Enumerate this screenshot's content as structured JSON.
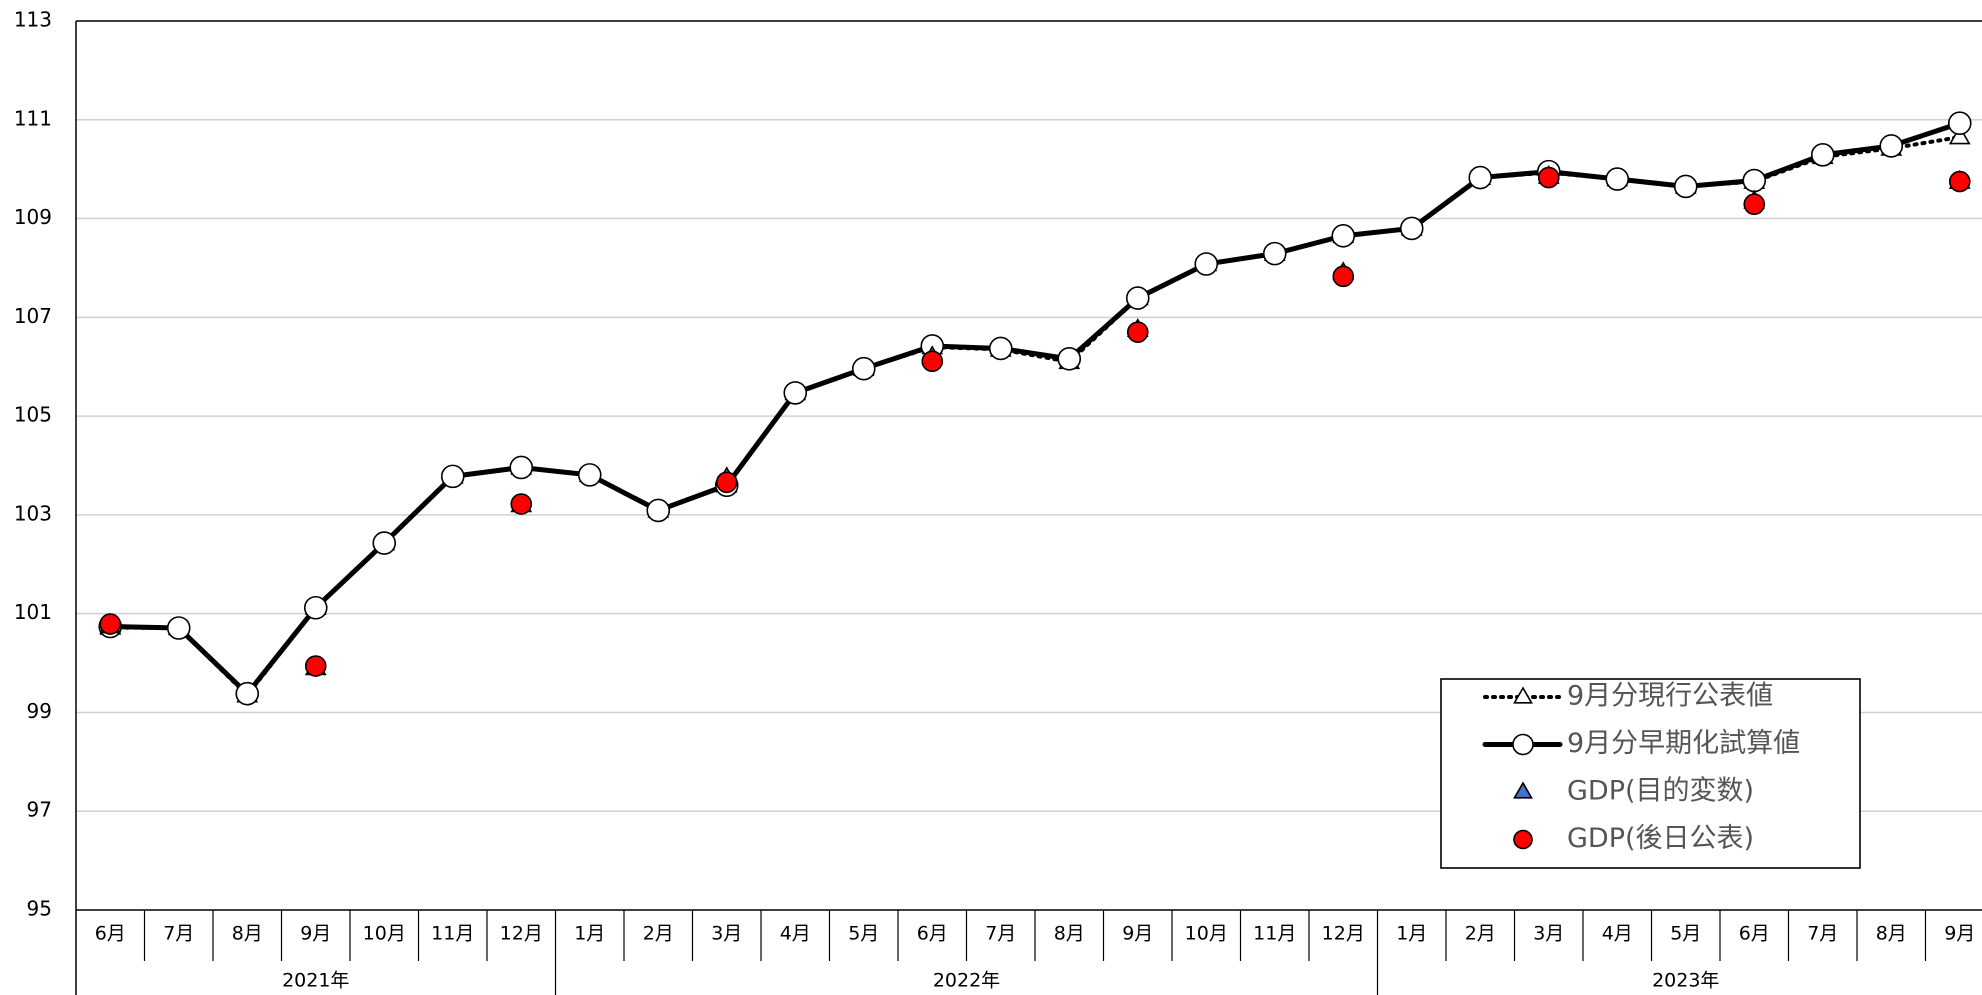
{
  "chart_data": {
    "type": "line",
    "categories": [
      "6月",
      "7月",
      "8月",
      "9月",
      "10月",
      "11月",
      "12月",
      "1月",
      "2月",
      "3月",
      "4月",
      "5月",
      "6月",
      "7月",
      "8月",
      "9月",
      "10月",
      "11月",
      "12月",
      "1月",
      "2月",
      "3月",
      "4月",
      "5月",
      "6月",
      "7月",
      "8月",
      "9月"
    ],
    "years": [
      "2021年",
      "2022年",
      "2023年"
    ],
    "series": [
      {
        "name": "9月分現行公表値",
        "color": "#ffffff",
        "marker": "triangle",
        "line": "dotted",
        "values": [
          100.72,
          100.71,
          99.35,
          101.12,
          102.43,
          103.78,
          103.96,
          103.81,
          103.09,
          103.6,
          105.47,
          105.96,
          106.4,
          106.35,
          106.1,
          107.39,
          108.08,
          108.29,
          108.65,
          108.8,
          109.83,
          109.93,
          109.8,
          109.65,
          109.75,
          110.25,
          110.42,
          110.65
        ]
      },
      {
        "name": "9月分早期化試算値",
        "color": "#ffffff",
        "marker": "circle",
        "line": "solid",
        "values": [
          100.74,
          100.71,
          99.38,
          101.12,
          102.43,
          103.78,
          103.96,
          103.81,
          103.09,
          103.6,
          105.47,
          105.96,
          106.42,
          106.37,
          106.16,
          107.39,
          108.08,
          108.29,
          108.65,
          108.8,
          109.83,
          109.95,
          109.8,
          109.65,
          109.77,
          110.29,
          110.47,
          110.93
        ]
      },
      {
        "name": "GDP(目的変数)",
        "color": "#4472c4",
        "marker": "triangle",
        "line": "none",
        "values": [
          100.75,
          null,
          null,
          99.9,
          null,
          null,
          103.2,
          null,
          null,
          103.75,
          null,
          null,
          106.2,
          null,
          null,
          106.75,
          null,
          null,
          107.9,
          null,
          null,
          109.85,
          null,
          null,
          109.35,
          null,
          null,
          109.75
        ]
      },
      {
        "name": "GDP(後日公表)",
        "color": "#ff0000",
        "marker": "circle",
        "line": "none",
        "values": [
          100.79,
          null,
          null,
          99.94,
          null,
          null,
          103.22,
          null,
          null,
          103.66,
          null,
          null,
          106.11,
          null,
          null,
          106.7,
          null,
          null,
          107.83,
          null,
          null,
          109.83,
          null,
          null,
          109.29,
          null,
          null,
          109.75
        ]
      }
    ],
    "ylim": [
      95,
      113
    ],
    "yticks": [
      95,
      97,
      99,
      101,
      103,
      105,
      107,
      109,
      111,
      113
    ],
    "grid": true,
    "legend": "lower right"
  }
}
